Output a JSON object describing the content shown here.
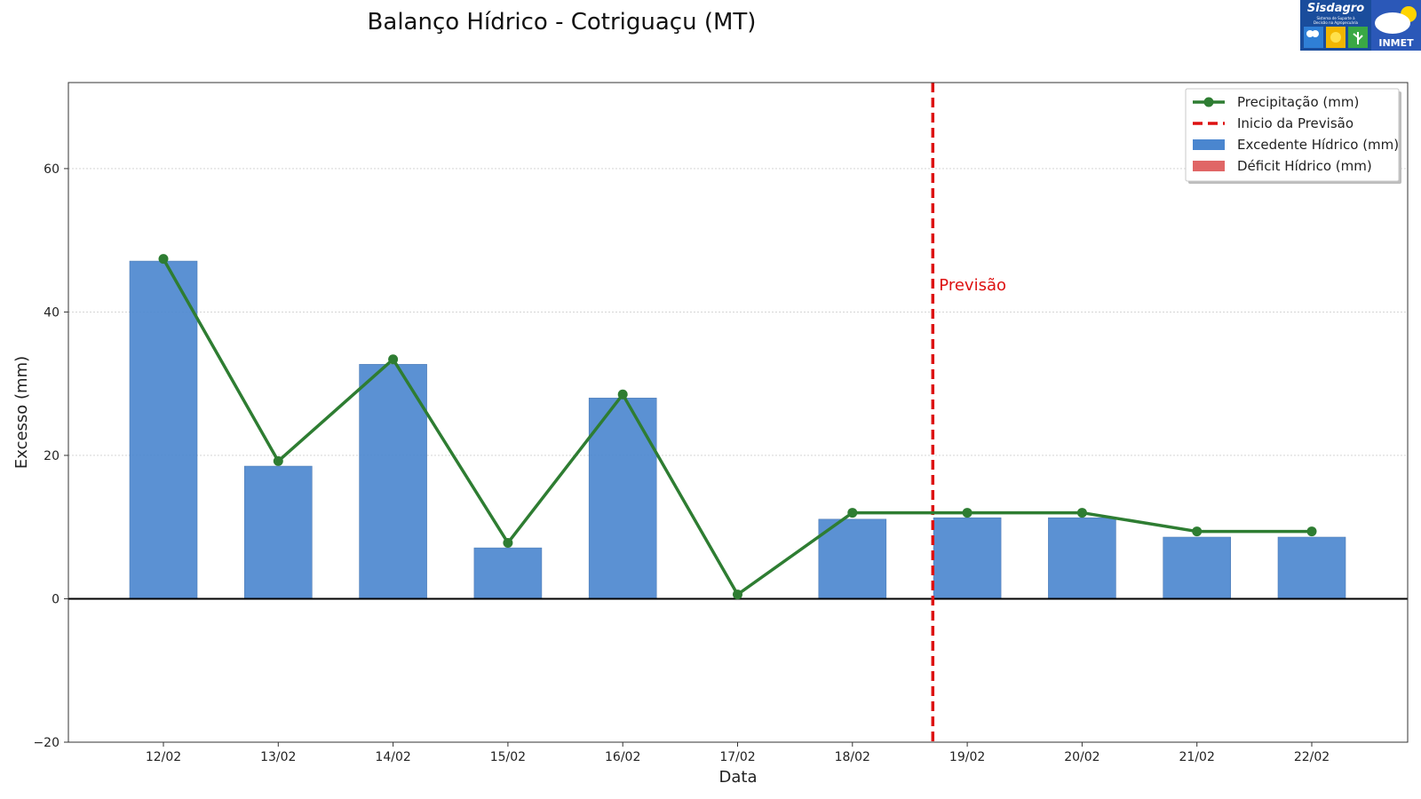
{
  "title": "Balanço Hídrico - Cotriguaçu (MT)",
  "logo": {
    "name": "Sisdagro",
    "subtitle": "Sistema de Suporte à Decisão na Agropecuária",
    "org": "INMET"
  },
  "chart_data": {
    "type": "bar",
    "title": "Balanço Hídrico - Cotriguaçu (MT)",
    "xlabel": "Data",
    "ylabel": "Excesso (mm)",
    "ylim": [
      -20,
      72
    ],
    "yticks": [
      -20,
      0,
      20,
      40,
      60
    ],
    "yticks_labels": [
      "−20",
      "0",
      "20",
      "40",
      "60"
    ],
    "categories": [
      "12/02",
      "13/02",
      "14/02",
      "15/02",
      "16/02",
      "17/02",
      "18/02",
      "19/02",
      "20/02",
      "21/02",
      "22/02"
    ],
    "grid": true,
    "legend_position": "top-right",
    "series": [
      {
        "name": "Excedente Hídrico (mm)",
        "kind": "bar",
        "color": "#4a86cf",
        "values": [
          47.1,
          18.5,
          32.7,
          7.1,
          28.0,
          0,
          11.1,
          11.3,
          11.3,
          8.6,
          8.6
        ]
      },
      {
        "name": "Déficit Hídrico (mm)",
        "kind": "bar",
        "color": "#e06666",
        "values": [
          0,
          0,
          0,
          0,
          0,
          0,
          0,
          0,
          0,
          0,
          0
        ]
      },
      {
        "name": "Precipitação (mm)",
        "kind": "line",
        "color": "#2e7d32",
        "values": [
          47.4,
          19.2,
          33.4,
          7.8,
          28.5,
          0.6,
          12.0,
          12.0,
          12.0,
          9.4,
          9.4
        ]
      }
    ],
    "forecast_start": {
      "label": "Inicio da Previsão",
      "after_category_index": 6.7,
      "color": "#dd1111",
      "annotation": "Previsão"
    },
    "legend": [
      "Precipitação (mm)",
      "Inicio da Previsão",
      "Excedente Hídrico (mm)",
      "Déficit Hídrico (mm)"
    ]
  }
}
